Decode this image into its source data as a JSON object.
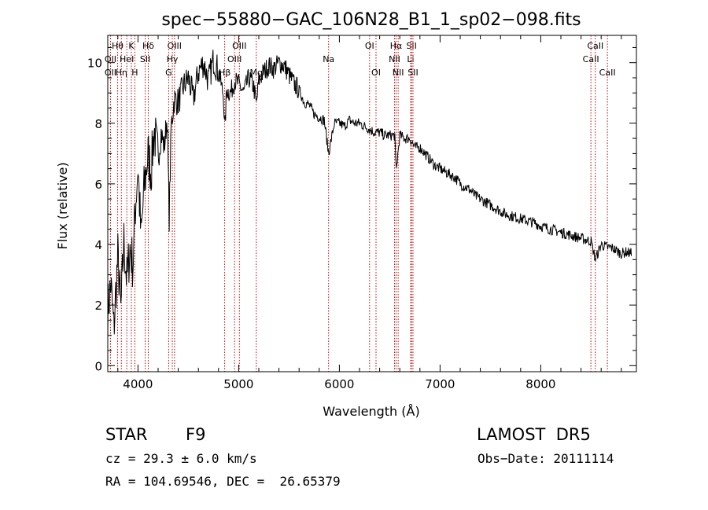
{
  "chart_data": {
    "type": "line",
    "title": "spec−55880−GAC_106N28_B1_1_sp02−098.fits",
    "xlabel": "Wavelength (Å)",
    "ylabel": "Flux (relative)",
    "xlim": [
      3700,
      8950
    ],
    "ylim": [
      -0.2,
      10.9
    ],
    "xticks": [
      "4000",
      "5000",
      "6000",
      "7000",
      "8000"
    ],
    "yticks": [
      "0",
      "2",
      "4",
      "6",
      "8",
      "10"
    ],
    "grid": false,
    "legend": "none",
    "line_color": "#000000",
    "marker_color": "#c00000",
    "series": [
      {
        "x": [
          3700,
          3730,
          3760,
          3800,
          3830,
          3860,
          3890,
          3920,
          3950,
          3970,
          4000,
          4030,
          4060,
          4100,
          4130,
          4160,
          4200,
          4230,
          4260,
          4290,
          4310,
          4330,
          4360,
          4400,
          4450,
          4500,
          4550,
          4600,
          4650,
          4700,
          4750,
          4800,
          4850,
          4862,
          4880,
          4920,
          4960,
          5000,
          5050,
          5100,
          5150,
          5175,
          5200,
          5250,
          5300,
          5350,
          5400,
          5450,
          5500,
          5550,
          5600,
          5650,
          5700,
          5750,
          5800,
          5850,
          5893,
          5950,
          6000,
          6050,
          6100,
          6150,
          6200,
          6250,
          6300,
          6350,
          6400,
          6450,
          6500,
          6550,
          6563,
          6600,
          6650,
          6700,
          6750,
          6800,
          6850,
          6900,
          6950,
          7000,
          7050,
          7100,
          7150,
          7200,
          7250,
          7300,
          7350,
          7400,
          7450,
          7500,
          7550,
          7600,
          7650,
          7700,
          7750,
          7800,
          7850,
          7900,
          7950,
          8000,
          8050,
          8100,
          8150,
          8200,
          8250,
          8300,
          8350,
          8400,
          8450,
          8500,
          8542,
          8600,
          8662,
          8700,
          8750,
          8800,
          8850,
          8900
        ],
        "y": [
          1.8,
          2.7,
          1.2,
          3.6,
          1.8,
          4.1,
          2.8,
          3.9,
          3.3,
          5.0,
          6.6,
          4.2,
          5.8,
          7.0,
          6.4,
          7.8,
          6.8,
          7.7,
          7.2,
          8.2,
          4.9,
          7.9,
          8.8,
          8.7,
          9.2,
          9.5,
          8.8,
          9.7,
          10.0,
          9.4,
          10.1,
          9.7,
          8.9,
          7.7,
          9.1,
          9.0,
          9.4,
          9.3,
          9.0,
          9.5,
          9.2,
          8.6,
          9.4,
          9.7,
          9.9,
          9.8,
          10.0,
          9.9,
          9.6,
          9.3,
          9.1,
          8.7,
          8.6,
          8.3,
          8.2,
          8.1,
          7.0,
          8.0,
          8.0,
          7.9,
          8.1,
          8.0,
          8.0,
          7.9,
          7.8,
          7.7,
          7.7,
          7.6,
          7.6,
          7.6,
          6.4,
          7.6,
          7.5,
          7.5,
          7.2,
          7.2,
          7.0,
          6.8,
          6.6,
          6.5,
          6.4,
          6.3,
          6.2,
          6.0,
          5.9,
          5.8,
          5.6,
          5.5,
          5.4,
          5.3,
          5.2,
          5.1,
          5.0,
          4.95,
          4.9,
          4.85,
          4.8,
          4.75,
          4.7,
          4.6,
          4.55,
          4.5,
          4.45,
          4.4,
          4.35,
          4.3,
          4.25,
          4.2,
          4.15,
          4.1,
          3.5,
          4.0,
          3.9,
          3.9,
          3.8,
          3.7,
          3.75,
          3.7
        ]
      }
    ],
    "lines": [
      {
        "label": "Hθ",
        "x": 3798,
        "row": 0
      },
      {
        "label": "OII",
        "x": 3727,
        "row": 1
      },
      {
        "label": "OII",
        "x": 3727,
        "row": 2
      },
      {
        "label": "Hη",
        "x": 3835,
        "row": 2
      },
      {
        "label": "K",
        "x": 3934,
        "row": 0
      },
      {
        "label": "HeI",
        "x": 3889,
        "row": 1
      },
      {
        "label": "H",
        "x": 3969,
        "row": 2
      },
      {
        "label": "Hδ",
        "x": 4102,
        "row": 0
      },
      {
        "label": "SII",
        "x": 4072,
        "row": 1
      },
      {
        "label": "OIII",
        "x": 4363,
        "row": 0
      },
      {
        "label": "Hγ",
        "x": 4341,
        "row": 1
      },
      {
        "label": "G",
        "x": 4305,
        "row": 2
      },
      {
        "label": "OIII",
        "x": 5007,
        "row": 0
      },
      {
        "label": "OIII",
        "x": 4959,
        "row": 1
      },
      {
        "label": "Hβ",
        "x": 4861,
        "row": 2
      },
      {
        "label": "Mg",
        "x": 5175,
        "row": 2
      },
      {
        "label": "Na",
        "x": 5893,
        "row": 1
      },
      {
        "label": "OI",
        "x": 6300,
        "row": 0
      },
      {
        "label": "OI",
        "x": 6364,
        "row": 2
      },
      {
        "label": "Hα",
        "x": 6563,
        "row": 0
      },
      {
        "label": "NII",
        "x": 6548,
        "row": 1
      },
      {
        "label": "NII",
        "x": 6584,
        "row": 2
      },
      {
        "label": "SII",
        "x": 6717,
        "row": 0
      },
      {
        "label": "Li",
        "x": 6708,
        "row": 1
      },
      {
        "label": "SII",
        "x": 6731,
        "row": 2
      },
      {
        "label": "CaII",
        "x": 8542,
        "row": 0
      },
      {
        "label": "CaII",
        "x": 8498,
        "row": 1
      },
      {
        "label": "CaII",
        "x": 8662,
        "row": 2
      }
    ]
  },
  "info": {
    "class_label": "STAR",
    "subclass": "F9",
    "survey": "LAMOST  DR5",
    "cz": "cz = 29.3 ± 6.0 km/s",
    "obs_date": "Obs−Date: 20111114",
    "radec": "RA = 104.69546, DEC =  26.65379"
  }
}
